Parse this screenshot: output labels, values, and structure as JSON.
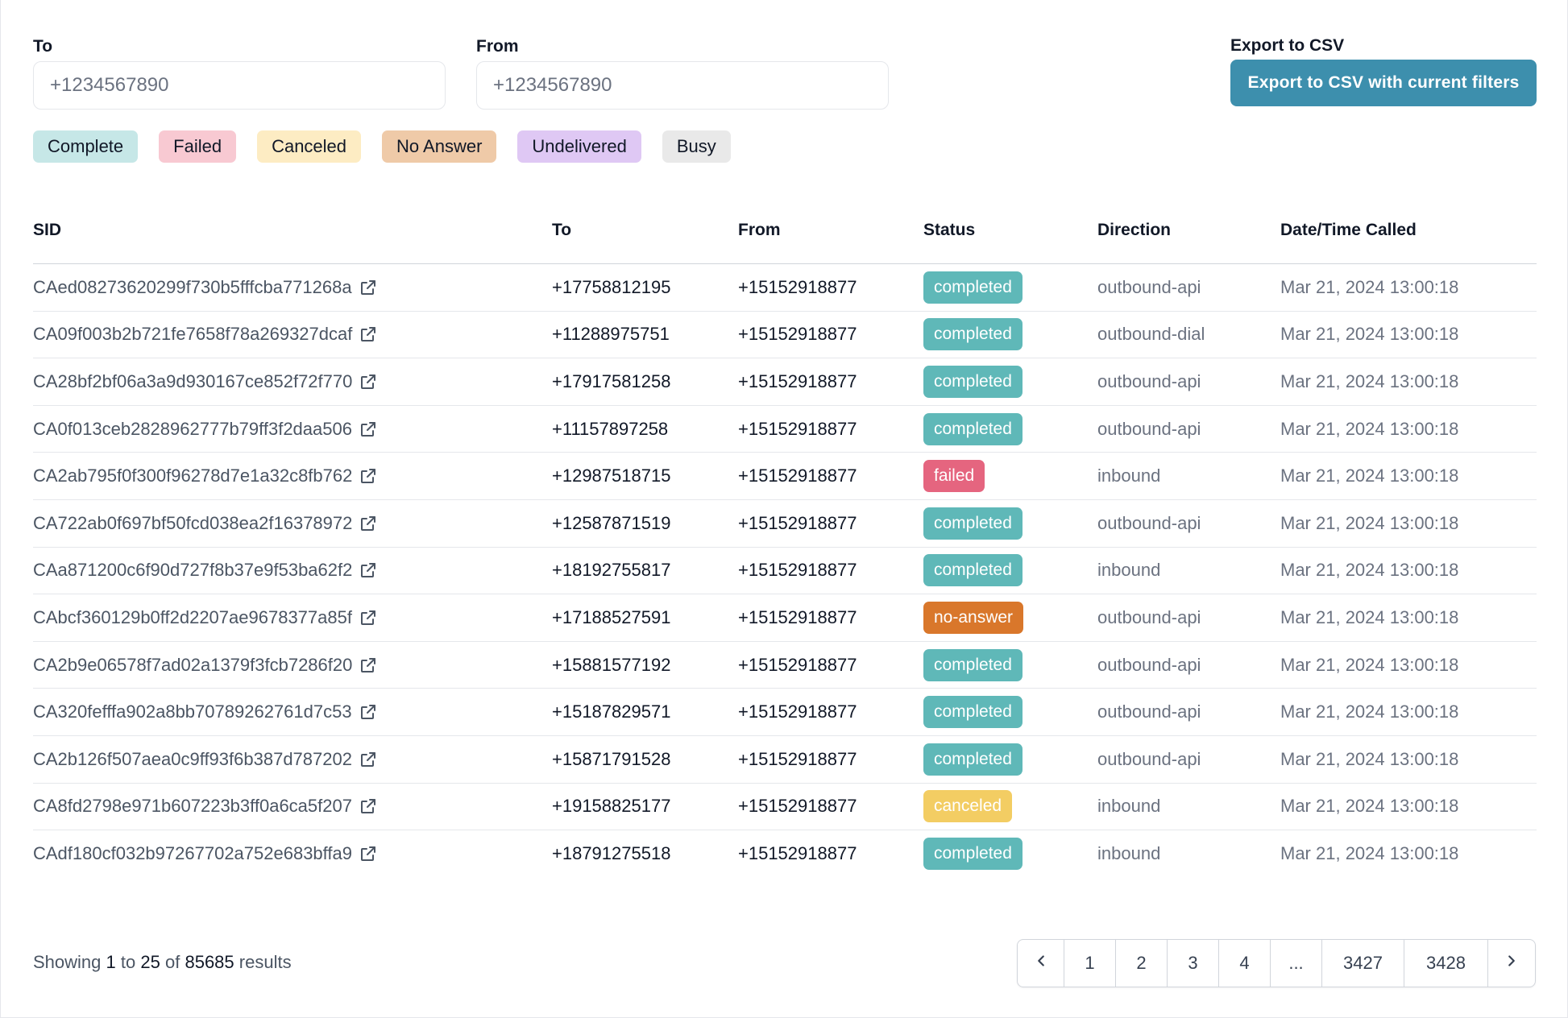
{
  "filters": {
    "to_label": "To",
    "to_placeholder": "+1234567890",
    "from_label": "From",
    "from_placeholder": "+1234567890",
    "export_label": "Export to CSV",
    "export_button": "Export to CSV with current filters",
    "export_color": "#3d8fad"
  },
  "status_chips": [
    {
      "label": "Complete",
      "color": "#c6e7e7"
    },
    {
      "label": "Failed",
      "color": "#f8c9d2"
    },
    {
      "label": "Canceled",
      "color": "#fdecc3"
    },
    {
      "label": "No Answer",
      "color": "#efcaa8"
    },
    {
      "label": "Undelivered",
      "color": "#dfc8f4"
    },
    {
      "label": "Busy",
      "color": "#e9e9e9"
    }
  ],
  "table": {
    "headers": {
      "sid": "SID",
      "to": "To",
      "from": "From",
      "status": "Status",
      "direction": "Direction",
      "date": "Date/Time Called"
    },
    "status_colors": {
      "completed": "#5fb8b8",
      "failed": "#e5657f",
      "no-answer": "#d9772b",
      "canceled": "#f3cd63"
    },
    "rows": [
      {
        "sid": "CAed08273620299f730b5fffcba771268a",
        "to": "+17758812195",
        "from": "+15152918877",
        "status": "completed",
        "direction": "outbound-api",
        "date": "Mar 21, 2024 13:00:18"
      },
      {
        "sid": "CA09f003b2b721fe7658f78a269327dcaf",
        "to": "+11288975751",
        "from": "+15152918877",
        "status": "completed",
        "direction": "outbound-dial",
        "date": "Mar 21, 2024 13:00:18"
      },
      {
        "sid": "CA28bf2bf06a3a9d930167ce852f72f770",
        "to": "+17917581258",
        "from": "+15152918877",
        "status": "completed",
        "direction": "outbound-api",
        "date": "Mar 21, 2024 13:00:18"
      },
      {
        "sid": "CA0f013ceb2828962777b79ff3f2daa506",
        "to": "+11157897258",
        "from": "+15152918877",
        "status": "completed",
        "direction": "outbound-api",
        "date": "Mar 21, 2024 13:00:18"
      },
      {
        "sid": "CA2ab795f0f300f96278d7e1a32c8fb762",
        "to": "+12987518715",
        "from": "+15152918877",
        "status": "failed",
        "direction": "inbound",
        "date": "Mar 21, 2024 13:00:18"
      },
      {
        "sid": "CA722ab0f697bf50fcd038ea2f16378972",
        "to": "+12587871519",
        "from": "+15152918877",
        "status": "completed",
        "direction": "outbound-api",
        "date": "Mar 21, 2024 13:00:18"
      },
      {
        "sid": "CAa871200c6f90d727f8b37e9f53ba62f2",
        "to": "+18192755817",
        "from": "+15152918877",
        "status": "completed",
        "direction": "inbound",
        "date": "Mar 21, 2024 13:00:18"
      },
      {
        "sid": "CAbcf360129b0ff2d2207ae9678377a85f",
        "to": "+17188527591",
        "from": "+15152918877",
        "status": "no-answer",
        "direction": "outbound-api",
        "date": "Mar 21, 2024 13:00:18"
      },
      {
        "sid": "CA2b9e06578f7ad02a1379f3fcb7286f20",
        "to": "+15881577192",
        "from": "+15152918877",
        "status": "completed",
        "direction": "outbound-api",
        "date": "Mar 21, 2024 13:00:18"
      },
      {
        "sid": "CA320fefffa902a8bb70789262761d7c53",
        "to": "+15187829571",
        "from": "+15152918877",
        "status": "completed",
        "direction": "outbound-api",
        "date": "Mar 21, 2024 13:00:18"
      },
      {
        "sid": "CA2b126f507aea0c9ff93f6b387d787202",
        "to": "+15871791528",
        "from": "+15152918877",
        "status": "completed",
        "direction": "outbound-api",
        "date": "Mar 21, 2024 13:00:18"
      },
      {
        "sid": "CA8fd2798e971b607223b3ff0a6ca5f207",
        "to": "+19158825177",
        "from": "+15152918877",
        "status": "canceled",
        "direction": "inbound",
        "date": "Mar 21, 2024 13:00:18"
      },
      {
        "sid": "CAdf180cf032b97267702a752e683bffa9",
        "to": "+18791275518",
        "from": "+15152918877",
        "status": "completed",
        "direction": "inbound",
        "date": "Mar 21, 2024 13:00:18"
      }
    ]
  },
  "footer": {
    "showing_prefix": "Showing",
    "range_start": "1",
    "range_to": "to",
    "range_end": "25",
    "of": "of",
    "total": "85685",
    "results_word": "results"
  },
  "pagination": {
    "prev_icon": "chevron-left-icon",
    "next_icon": "chevron-right-icon",
    "pages": [
      "1",
      "2",
      "3",
      "4",
      "...",
      "3427",
      "3428"
    ]
  }
}
